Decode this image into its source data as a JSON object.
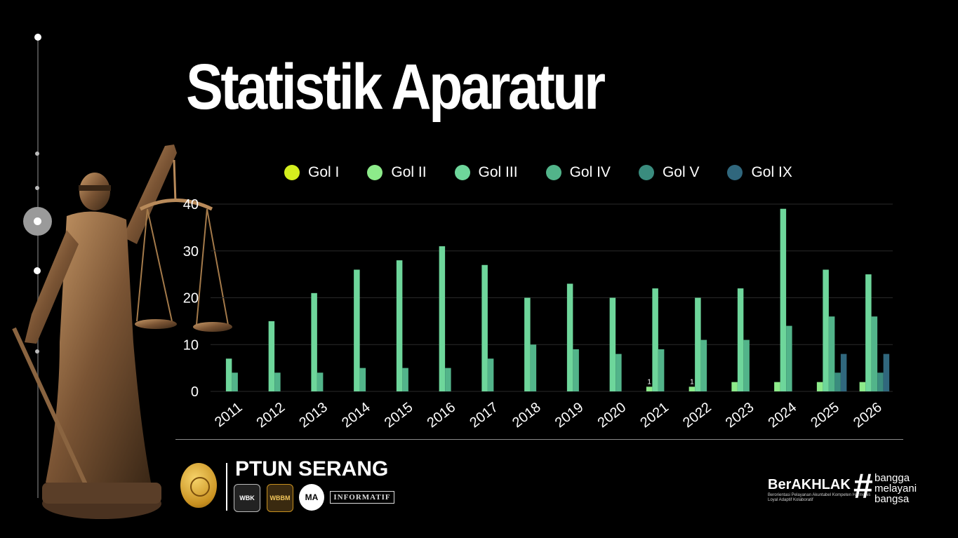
{
  "page": {
    "title": "Statistik Aparatur"
  },
  "chart_data": {
    "type": "bar",
    "title": "",
    "xlabel": "",
    "ylabel": "",
    "categories": [
      "2011",
      "2012",
      "2013",
      "2014",
      "2015",
      "2016",
      "2017",
      "2018",
      "2019",
      "2020",
      "2021",
      "2022",
      "2023",
      "2024",
      "2025",
      "2026"
    ],
    "ylim": [
      0,
      40
    ],
    "yticks": [
      0,
      10,
      20,
      30,
      40
    ],
    "grid": true,
    "legend_placement": "top",
    "series": [
      {
        "name": "Gol I",
        "color": "#d4ef1e",
        "values": [
          0,
          0,
          0,
          0,
          0,
          0,
          0,
          0,
          0,
          0,
          0,
          0,
          0,
          0,
          0,
          0
        ]
      },
      {
        "name": "Gol II",
        "color": "#8deb8a",
        "values": [
          0,
          0,
          0,
          0,
          0,
          0,
          0,
          0,
          0,
          0,
          1,
          1,
          2,
          2,
          2,
          2
        ]
      },
      {
        "name": "Gol III",
        "color": "#6ed69b",
        "values": [
          7,
          15,
          21,
          26,
          28,
          31,
          27,
          20,
          23,
          20,
          22,
          20,
          22,
          39,
          26,
          25
        ]
      },
      {
        "name": "Gol IV",
        "color": "#52b48a",
        "values": [
          4,
          4,
          4,
          5,
          5,
          5,
          7,
          10,
          9,
          8,
          9,
          11,
          11,
          14,
          16,
          16
        ]
      },
      {
        "name": "Gol V",
        "color": "#3a8c7e",
        "values": [
          0,
          0,
          0,
          0,
          0,
          0,
          0,
          0,
          0,
          0,
          0,
          0,
          0,
          0,
          4,
          4
        ]
      },
      {
        "name": "Gol IX",
        "color": "#30677d",
        "values": [
          0,
          0,
          0,
          0,
          0,
          0,
          0,
          0,
          0,
          0,
          0,
          0,
          0,
          0,
          8,
          8
        ]
      }
    ],
    "data_labels": [
      {
        "series": "Gol II",
        "category": "2021",
        "text": "1"
      },
      {
        "series": "Gol II",
        "category": "2022",
        "text": "1"
      }
    ]
  },
  "footer": {
    "org_name": "PTUN SERANG",
    "badges": {
      "wbk": "WBK",
      "wbbm": "WBBM",
      "ma": "MA",
      "informatif": "INFORMATIF"
    },
    "berakhlak": {
      "name": "BerAKHLAK",
      "subtitle": "Berorientasi Pelayanan Akuntabel Kompeten Harmonis Loyal Adaptif Kolaboratif",
      "hash": "#",
      "tagline": [
        "bangga",
        "melayani",
        "bangsa"
      ]
    }
  }
}
